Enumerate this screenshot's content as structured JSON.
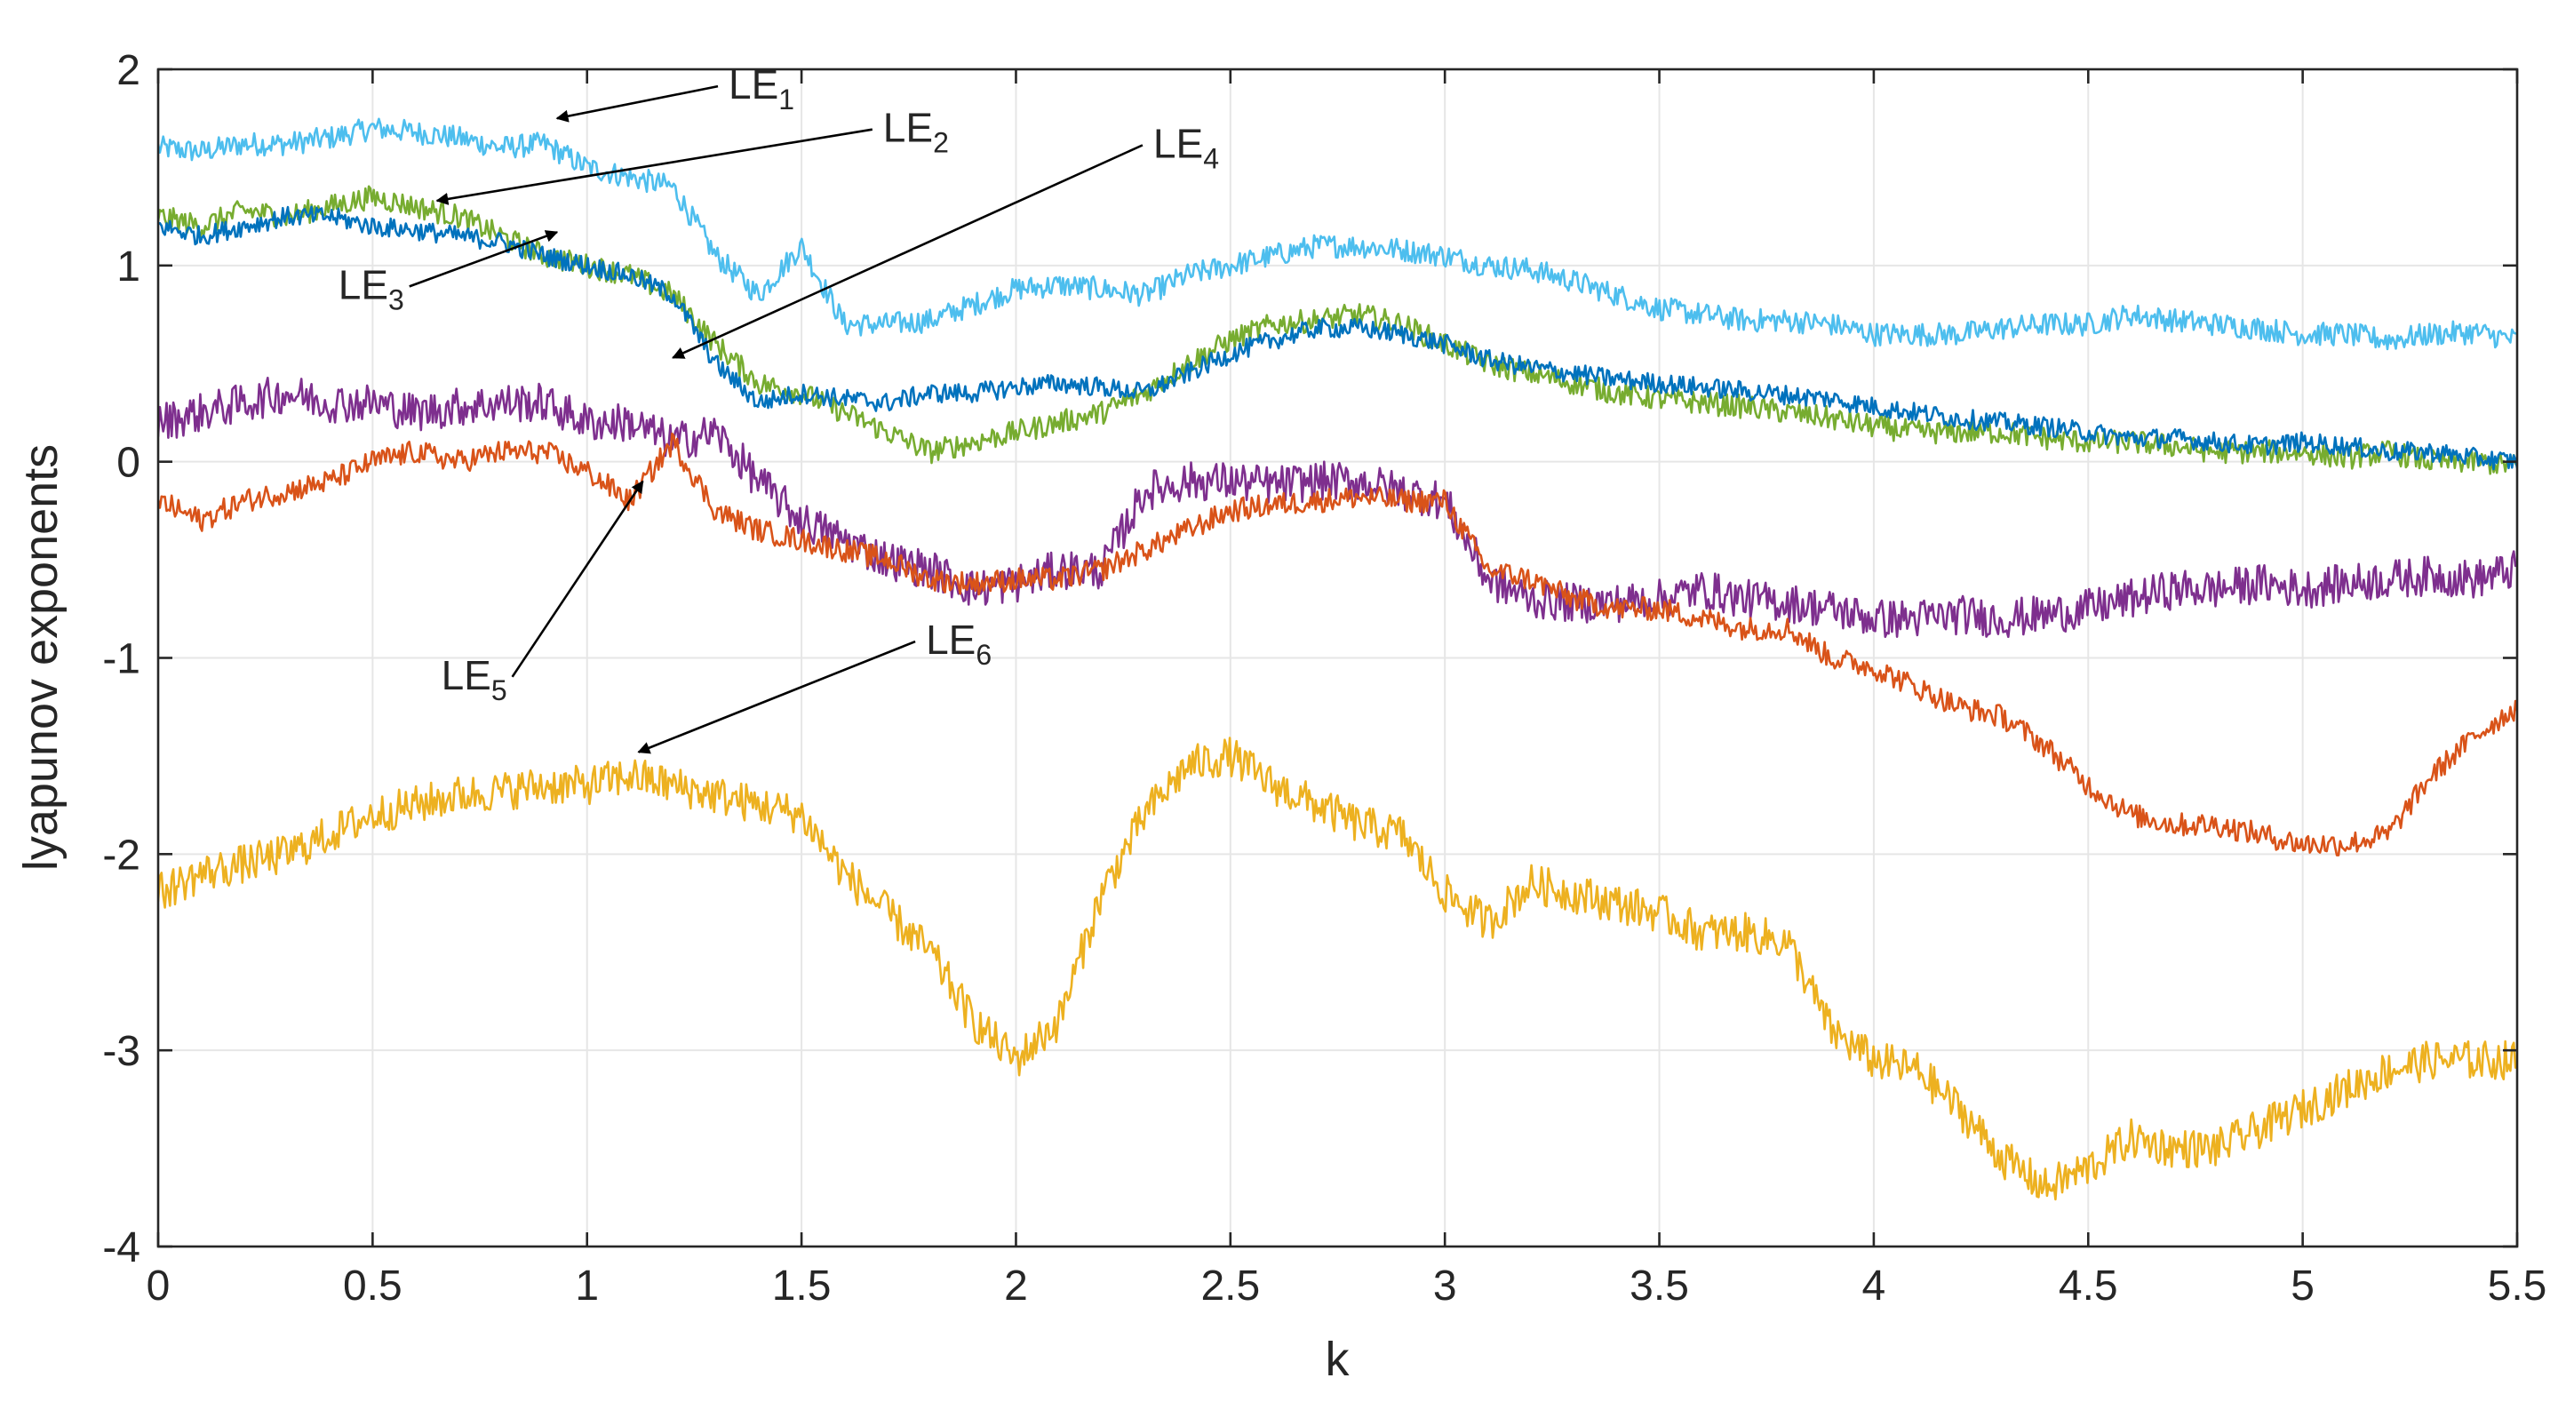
{
  "chart_data": {
    "type": "line",
    "title": "",
    "xlabel": "k",
    "ylabel": "lyapunov exponents",
    "xlim": [
      0,
      5.5
    ],
    "ylim": [
      -4,
      2
    ],
    "grid": true,
    "legend": "none",
    "x_ticks": [
      0,
      0.5,
      1,
      1.5,
      2,
      2.5,
      3,
      3.5,
      4,
      4.5,
      5,
      5.5
    ],
    "x_tick_labels": [
      "0",
      "0.5",
      "1",
      "1.5",
      "2",
      "2.5",
      "3",
      "3.5",
      "4",
      "4.5",
      "5",
      "5.5"
    ],
    "y_ticks": [
      -4,
      -3,
      -2,
      -1,
      0,
      1,
      2
    ],
    "y_tick_labels": [
      "-4",
      "-3",
      "-2",
      "-1",
      "0",
      "1",
      "2"
    ],
    "x": [
      0,
      0.1,
      0.2,
      0.3,
      0.4,
      0.5,
      0.6,
      0.7,
      0.8,
      0.9,
      1.0,
      1.1,
      1.2,
      1.3,
      1.4,
      1.5,
      1.6,
      1.7,
      1.8,
      1.9,
      2.0,
      2.1,
      2.2,
      2.3,
      2.4,
      2.5,
      2.6,
      2.7,
      2.8,
      2.9,
      3.0,
      3.1,
      3.2,
      3.3,
      3.4,
      3.5,
      3.6,
      3.7,
      3.8,
      3.9,
      4.0,
      4.1,
      4.2,
      4.3,
      4.4,
      4.5,
      4.6,
      4.7,
      4.8,
      4.9,
      5.0,
      5.1,
      5.2,
      5.3,
      5.4,
      5.5
    ],
    "series": [
      {
        "name": "LE1",
        "color": "#4DBEEE",
        "noise": 0.06,
        "values": [
          1.6,
          1.58,
          1.62,
          1.62,
          1.65,
          1.7,
          1.68,
          1.65,
          1.6,
          1.62,
          1.5,
          1.45,
          1.4,
          1.05,
          0.85,
          1.1,
          0.7,
          0.7,
          0.72,
          0.8,
          0.88,
          0.9,
          0.88,
          0.85,
          0.95,
          1.0,
          1.05,
          1.1,
          1.1,
          1.08,
          1.05,
          1.0,
          0.98,
          0.92,
          0.85,
          0.78,
          0.75,
          0.72,
          0.72,
          0.7,
          0.65,
          0.65,
          0.65,
          0.68,
          0.7,
          0.7,
          0.75,
          0.72,
          0.7,
          0.68,
          0.65,
          0.65,
          0.62,
          0.65,
          0.66,
          0.62
        ]
      },
      {
        "name": "LE2",
        "color": "#77AC30",
        "noise": 0.06,
        "values": [
          1.25,
          1.2,
          1.28,
          1.25,
          1.3,
          1.35,
          1.3,
          1.25,
          1.15,
          1.05,
          1.0,
          0.95,
          0.85,
          0.6,
          0.4,
          0.35,
          0.25,
          0.15,
          0.05,
          0.1,
          0.15,
          0.2,
          0.25,
          0.35,
          0.5,
          0.62,
          0.7,
          0.72,
          0.75,
          0.7,
          0.6,
          0.5,
          0.45,
          0.4,
          0.35,
          0.32,
          0.3,
          0.28,
          0.25,
          0.22,
          0.18,
          0.15,
          0.15,
          0.15,
          0.12,
          0.1,
          0.1,
          0.08,
          0.05,
          0.05,
          0.05,
          0.02,
          0.05,
          0.0,
          0.0,
          -0.02
        ]
      },
      {
        "name": "LE3",
        "color": "#0072BD",
        "noise": 0.05,
        "values": [
          1.2,
          1.15,
          1.2,
          1.25,
          1.25,
          1.2,
          1.18,
          1.15,
          1.12,
          1.05,
          1.0,
          0.95,
          0.85,
          0.5,
          0.3,
          0.35,
          0.32,
          0.3,
          0.35,
          0.35,
          0.38,
          0.4,
          0.38,
          0.35,
          0.45,
          0.55,
          0.62,
          0.68,
          0.68,
          0.65,
          0.6,
          0.52,
          0.48,
          0.45,
          0.42,
          0.4,
          0.38,
          0.36,
          0.34,
          0.32,
          0.28,
          0.25,
          0.22,
          0.2,
          0.18,
          0.15,
          0.12,
          0.12,
          0.1,
          0.08,
          0.1,
          0.08,
          0.05,
          0.05,
          0.02,
          0.0
        ]
      },
      {
        "name": "LE4",
        "color": "#7E2F8E",
        "noise": 0.1,
        "values": [
          0.2,
          0.25,
          0.3,
          0.35,
          0.3,
          0.3,
          0.25,
          0.28,
          0.3,
          0.3,
          0.2,
          0.2,
          0.1,
          0.15,
          -0.1,
          -0.3,
          -0.4,
          -0.5,
          -0.55,
          -0.65,
          -0.62,
          -0.55,
          -0.55,
          -0.15,
          -0.1,
          -0.1,
          -0.12,
          -0.1,
          -0.1,
          -0.15,
          -0.2,
          -0.6,
          -0.7,
          -0.72,
          -0.72,
          -0.7,
          -0.65,
          -0.7,
          -0.72,
          -0.75,
          -0.8,
          -0.8,
          -0.78,
          -0.8,
          -0.78,
          -0.75,
          -0.7,
          -0.65,
          -0.65,
          -0.62,
          -0.65,
          -0.62,
          -0.6,
          -0.58,
          -0.6,
          -0.55
        ]
      },
      {
        "name": "LE5",
        "color": "#D95319",
        "noise": 0.06,
        "values": [
          -0.2,
          -0.3,
          -0.2,
          -0.15,
          -0.1,
          0.0,
          0.05,
          0.0,
          0.05,
          0.05,
          -0.05,
          -0.2,
          0.1,
          -0.25,
          -0.35,
          -0.4,
          -0.45,
          -0.5,
          -0.6,
          -0.62,
          -0.6,
          -0.6,
          -0.55,
          -0.45,
          -0.35,
          -0.25,
          -0.22,
          -0.2,
          -0.18,
          -0.2,
          -0.2,
          -0.55,
          -0.6,
          -0.7,
          -0.75,
          -0.75,
          -0.8,
          -0.85,
          -0.85,
          -1.0,
          -1.05,
          -1.15,
          -1.25,
          -1.3,
          -1.45,
          -1.65,
          -1.8,
          -1.85,
          -1.85,
          -1.9,
          -1.95,
          -1.95,
          -1.9,
          -1.6,
          -1.4,
          -1.25
        ]
      },
      {
        "name": "LE6",
        "color": "#EDB120",
        "noise": 0.1,
        "values": [
          -2.2,
          -2.1,
          -2.05,
          -2.0,
          -1.9,
          -1.8,
          -1.75,
          -1.7,
          -1.68,
          -1.65,
          -1.65,
          -1.6,
          -1.65,
          -1.7,
          -1.75,
          -1.8,
          -2.1,
          -2.3,
          -2.5,
          -2.85,
          -3.05,
          -2.85,
          -2.2,
          -1.8,
          -1.55,
          -1.5,
          -1.65,
          -1.75,
          -1.85,
          -1.9,
          -2.2,
          -2.35,
          -2.15,
          -2.2,
          -2.25,
          -2.3,
          -2.4,
          -2.4,
          -2.45,
          -2.9,
          -3.05,
          -3.1,
          -3.3,
          -3.55,
          -3.7,
          -3.6,
          -3.45,
          -3.5,
          -3.5,
          -3.4,
          -3.3,
          -3.2,
          -3.1,
          -3.05,
          -3.05,
          -3.05
        ]
      }
    ],
    "annotations": [
      {
        "label": "LE",
        "sub": "1",
        "text_x": 1.33,
        "text_y": 1.85,
        "arrow_to_x": 0.93,
        "arrow_to_y": 1.75
      },
      {
        "label": "LE",
        "sub": "2",
        "text_x": 1.69,
        "text_y": 1.63,
        "arrow_to_x": 0.65,
        "arrow_to_y": 1.33
      },
      {
        "label": "LE",
        "sub": "3",
        "text_x": 0.42,
        "text_y": 0.83,
        "arrow_to_x": 0.93,
        "arrow_to_y": 1.17
      },
      {
        "label": "LE",
        "sub": "4",
        "text_x": 2.32,
        "text_y": 1.55,
        "arrow_to_x": 1.2,
        "arrow_to_y": 0.53
      },
      {
        "label": "LE",
        "sub": "5",
        "text_x": 0.66,
        "text_y": -1.16,
        "arrow_to_x": 1.13,
        "arrow_to_y": -0.1
      },
      {
        "label": "LE",
        "sub": "6",
        "text_x": 1.79,
        "text_y": -0.98,
        "arrow_to_x": 1.12,
        "arrow_to_y": -1.48
      }
    ]
  }
}
